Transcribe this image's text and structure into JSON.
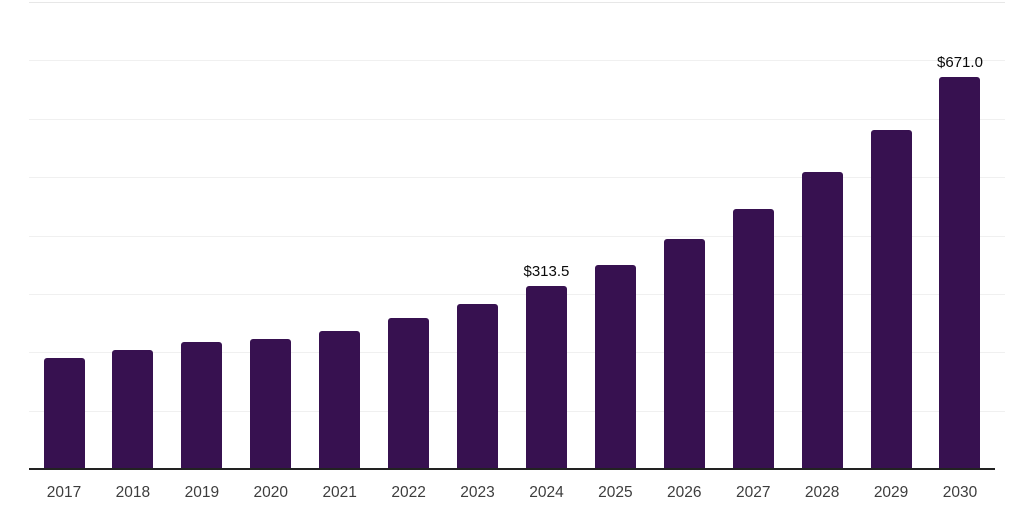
{
  "chart": {
    "background_color": "#ffffff",
    "bar_color": "#371150",
    "gridline_color": "#f0f0f0",
    "top_gridline_color": "#e7e7e7",
    "axis_line_color": "#222222",
    "tick_label_color": "#3d3d3d",
    "value_label_color": "#0a0a0a"
  },
  "chart_data": {
    "type": "bar",
    "title": "",
    "xlabel": "",
    "ylabel": "",
    "categories": [
      "2017",
      "2018",
      "2019",
      "2020",
      "2021",
      "2022",
      "2023",
      "2024",
      "2025",
      "2026",
      "2027",
      "2028",
      "2029",
      "2030"
    ],
    "values": [
      191,
      204,
      217,
      223,
      237,
      258,
      283,
      313.5,
      349,
      394,
      445,
      508,
      580,
      671
    ],
    "value_labels": {
      "2024": "$313.5",
      "2030": "$671.0"
    },
    "ylim": [
      0,
      800
    ],
    "gridline_step": 100,
    "grid": true,
    "legend": "none"
  }
}
